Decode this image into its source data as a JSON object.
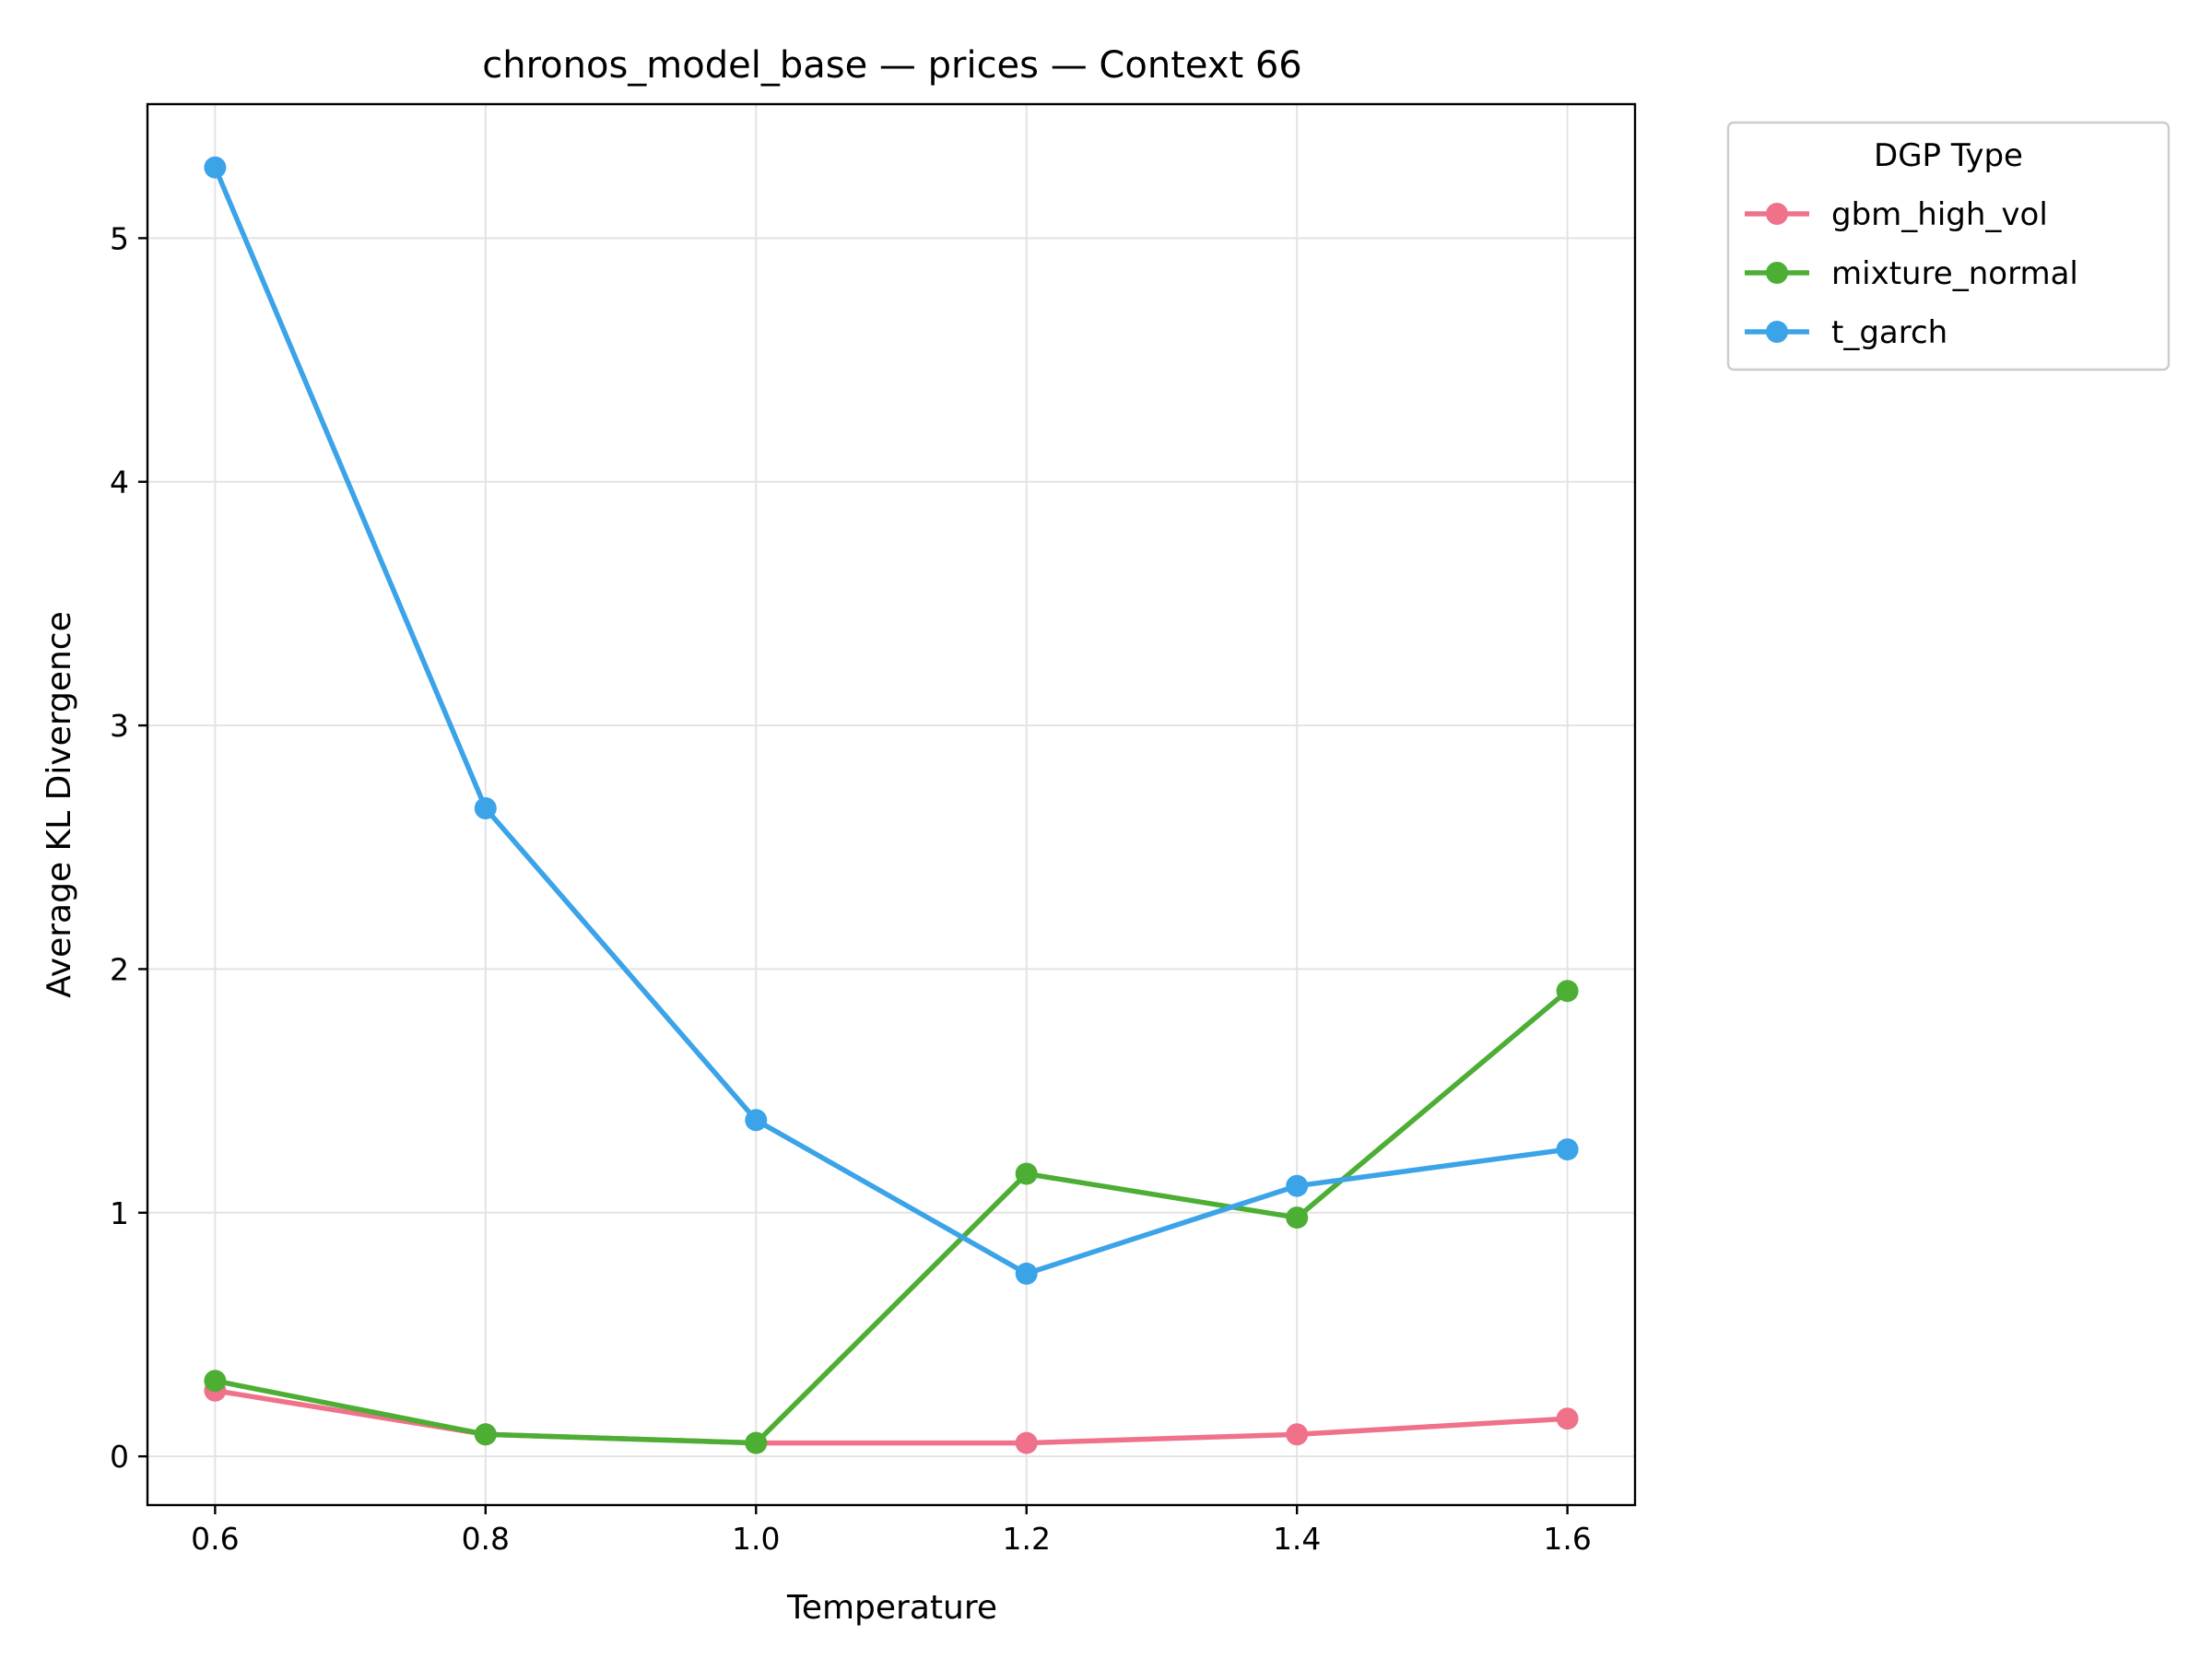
{
  "chart_data": {
    "type": "line",
    "title": "chronos_model_base — prices — Context 66",
    "xlabel": "Temperature",
    "ylabel": "Average KL Divergence",
    "x": [
      0.6,
      0.8,
      1.0,
      1.2,
      1.4,
      1.6
    ],
    "x_tick_labels": [
      "0.6",
      "0.8",
      "1.0",
      "1.2",
      "1.4",
      "1.6"
    ],
    "y_ticks": [
      0,
      1,
      2,
      3,
      4,
      5
    ],
    "y_tick_labels": [
      "0",
      "1",
      "2",
      "3",
      "4",
      "5"
    ],
    "xlim": [
      0.55,
      1.65
    ],
    "ylim": [
      -0.2,
      5.55
    ],
    "grid": true,
    "legend": {
      "title": "DGP Type",
      "placement": "outside upper-right"
    },
    "series": [
      {
        "name": "gbm_high_vol",
        "color": "#f0718a",
        "values": [
          0.27,
          0.09,
          0.055,
          0.055,
          0.09,
          0.155
        ]
      },
      {
        "name": "mixture_normal",
        "color": "#4cae33",
        "values": [
          0.31,
          0.09,
          0.055,
          1.16,
          0.98,
          1.91
        ]
      },
      {
        "name": "t_garch",
        "color": "#3ba3e8",
        "values": [
          5.29,
          2.66,
          1.38,
          0.75,
          1.11,
          1.26
        ]
      }
    ]
  }
}
